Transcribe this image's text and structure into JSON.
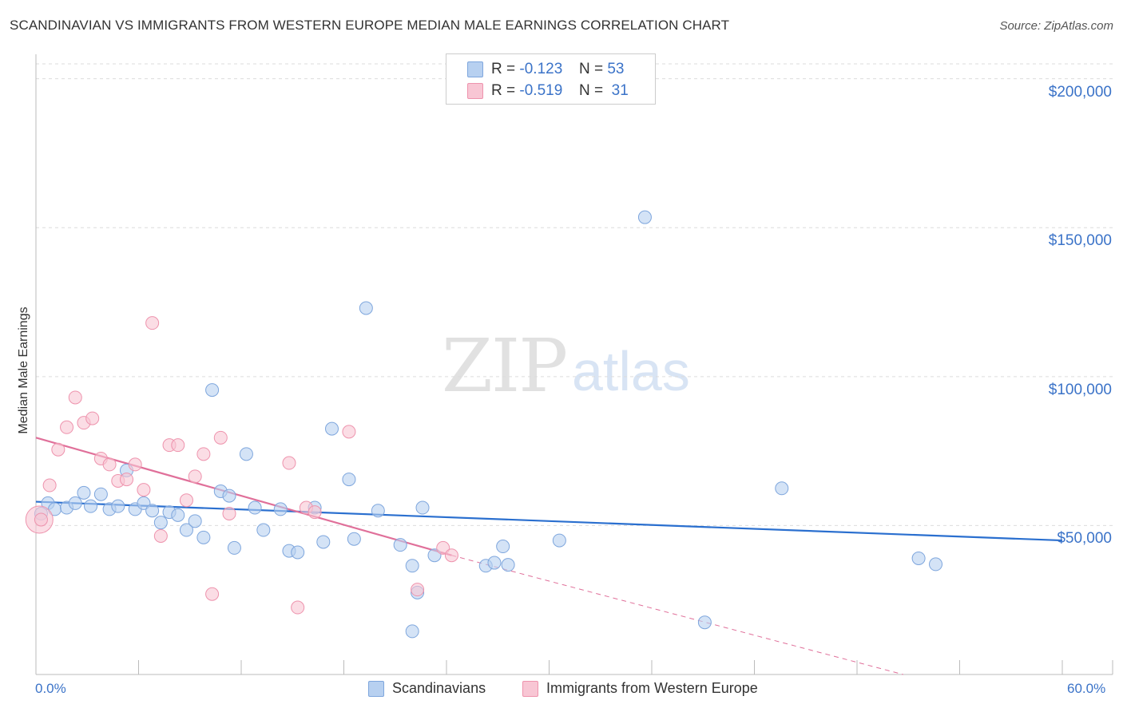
{
  "title": "SCANDINAVIAN VS IMMIGRANTS FROM WESTERN EUROPE MEDIAN MALE EARNINGS CORRELATION CHART",
  "source": "Source: ZipAtlas.com",
  "watermark": {
    "zip": "ZIP",
    "atlas": "atlas"
  },
  "legend": {
    "row1": {
      "r_label": "R =",
      "r_value": "-0.123",
      "n_label": "N =",
      "n_value": "53"
    },
    "row2": {
      "r_label": "R =",
      "r_value": "-0.519",
      "n_label": "N =",
      "n_value": "31"
    }
  },
  "colors": {
    "blue_fill": "#b7d0f0",
    "blue_stroke": "#7ea6dd",
    "blue_line": "#2a6fcf",
    "pink_fill": "#f8c6d4",
    "pink_stroke": "#ee93ad",
    "pink_line": "#e0709a",
    "axis_text": "#3b73c8"
  },
  "chart_data": {
    "type": "scatter",
    "title": "SCANDINAVIAN VS IMMIGRANTS FROM WESTERN EUROPE MEDIAN MALE EARNINGS CORRELATION CHART",
    "xlabel": "",
    "ylabel": "Median Male Earnings",
    "xlim": [
      0,
      60
    ],
    "ylim": [
      0,
      205000
    ],
    "x_tick_labels": [
      "0.0%",
      "60.0%"
    ],
    "y_ticks": [
      50000,
      100000,
      150000,
      200000
    ],
    "y_tick_labels": [
      "$50,000",
      "$100,000",
      "$150,000",
      "$200,000"
    ],
    "series": [
      {
        "name": "Scandinavians",
        "color": "blue",
        "trend": {
          "x": [
            0,
            60
          ],
          "y": [
            58000,
            45000
          ],
          "dashed_extension": false
        },
        "points": [
          [
            0.3,
            54000
          ],
          [
            0.7,
            57500
          ],
          [
            1.1,
            55500
          ],
          [
            1.8,
            56000
          ],
          [
            2.3,
            57500
          ],
          [
            2.8,
            61000
          ],
          [
            3.2,
            56500
          ],
          [
            3.8,
            60500
          ],
          [
            4.3,
            55500
          ],
          [
            4.8,
            56500
          ],
          [
            5.3,
            68500
          ],
          [
            5.8,
            55500
          ],
          [
            6.3,
            57500
          ],
          [
            6.8,
            55000
          ],
          [
            7.3,
            51000
          ],
          [
            7.8,
            54500
          ],
          [
            8.3,
            53500
          ],
          [
            8.8,
            48500
          ],
          [
            9.3,
            51500
          ],
          [
            9.8,
            46000
          ],
          [
            10.3,
            95500
          ],
          [
            10.8,
            61500
          ],
          [
            11.3,
            60000
          ],
          [
            11.6,
            42500
          ],
          [
            12.3,
            74000
          ],
          [
            12.8,
            56000
          ],
          [
            13.3,
            48500
          ],
          [
            14.3,
            55500
          ],
          [
            14.8,
            41500
          ],
          [
            15.3,
            41000
          ],
          [
            16.3,
            56000
          ],
          [
            16.8,
            44500
          ],
          [
            17.3,
            82500
          ],
          [
            18.3,
            65500
          ],
          [
            18.6,
            45500
          ],
          [
            19.3,
            123000
          ],
          [
            20.0,
            55000
          ],
          [
            21.3,
            43500
          ],
          [
            22.0,
            36500
          ],
          [
            22.3,
            27500
          ],
          [
            22.6,
            56000
          ],
          [
            22.0,
            14500
          ],
          [
            23.3,
            40000
          ],
          [
            26.3,
            36500
          ],
          [
            26.8,
            37500
          ],
          [
            27.3,
            43000
          ],
          [
            27.6,
            36800
          ],
          [
            30.6,
            45000
          ],
          [
            35.6,
            153500
          ],
          [
            39.1,
            17500
          ],
          [
            43.6,
            62500
          ],
          [
            51.6,
            39000
          ],
          [
            52.6,
            37000
          ]
        ]
      },
      {
        "name": "Immigrants from Western Europe",
        "color": "pink",
        "trend": {
          "x": [
            0,
            24.3
          ],
          "y": [
            79500,
            40000
          ],
          "dashed_to": [
            50.7,
            0
          ]
        },
        "points": [
          [
            0.3,
            52000
          ],
          [
            0.8,
            63500
          ],
          [
            1.3,
            75500
          ],
          [
            1.8,
            83000
          ],
          [
            2.3,
            93000
          ],
          [
            2.8,
            84500
          ],
          [
            3.3,
            86000
          ],
          [
            3.8,
            72500
          ],
          [
            4.3,
            70500
          ],
          [
            4.8,
            65000
          ],
          [
            5.3,
            65500
          ],
          [
            5.8,
            70500
          ],
          [
            6.3,
            62000
          ],
          [
            6.8,
            118000
          ],
          [
            7.3,
            46500
          ],
          [
            7.8,
            77000
          ],
          [
            8.3,
            77000
          ],
          [
            8.8,
            58500
          ],
          [
            9.3,
            66500
          ],
          [
            9.8,
            74000
          ],
          [
            10.3,
            27000
          ],
          [
            10.8,
            79500
          ],
          [
            11.3,
            54000
          ],
          [
            14.8,
            71000
          ],
          [
            15.3,
            22500
          ],
          [
            15.8,
            56000
          ],
          [
            16.3,
            54500
          ],
          [
            18.3,
            81500
          ],
          [
            22.3,
            28500
          ],
          [
            23.8,
            42500
          ],
          [
            24.3,
            40000
          ]
        ],
        "big_points": [
          [
            0.2,
            52000
          ]
        ]
      }
    ]
  },
  "bottom_legend": {
    "item1": "Scandinavians",
    "item2": "Immigrants from Western Europe"
  },
  "y_axis_label": "Median Male Earnings"
}
